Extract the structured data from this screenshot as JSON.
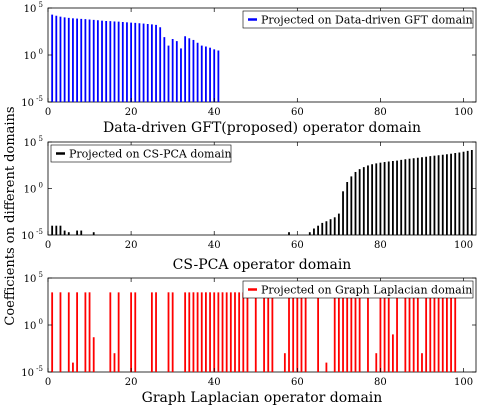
{
  "figure": {
    "ylabel": "Coefficients on different domains"
  },
  "chart_data": [
    {
      "type": "bar",
      "title": "",
      "xlabel": "Data-driven GFT(proposed) operator domain",
      "ylabel": "",
      "legend": "Projected on Data-driven GFT domain",
      "legend_position": "top-right",
      "color": "#0000ff",
      "yscale": "log",
      "xlim": [
        0,
        103
      ],
      "ylim": [
        1e-05,
        100000
      ],
      "xticks": [
        0,
        20,
        40,
        60,
        80,
        100
      ],
      "yticks": [
        1e-05,
        1,
        100000
      ],
      "ytick_labels": [
        {
          "base": "10",
          "exp": "-5"
        },
        {
          "base": "10",
          "exp": "0"
        },
        {
          "base": "10",
          "exp": "5"
        }
      ],
      "x": [
        1,
        2,
        3,
        4,
        5,
        6,
        7,
        8,
        9,
        10,
        11,
        12,
        13,
        14,
        15,
        16,
        17,
        18,
        19,
        20,
        21,
        22,
        23,
        24,
        25,
        26,
        27,
        28,
        29,
        30,
        31,
        32,
        33,
        34,
        35,
        36,
        37,
        38,
        39,
        40,
        41
      ],
      "values": [
        20000,
        15000,
        12000,
        10000,
        9000,
        8000,
        7500,
        7000,
        6500,
        6000,
        5500,
        5000,
        4500,
        4200,
        4000,
        3700,
        3500,
        3200,
        3000,
        2800,
        2600,
        2400,
        2200,
        2000,
        1800,
        1600,
        900,
        80,
        10,
        50,
        30,
        5,
        100,
        60,
        40,
        20,
        10,
        8,
        6,
        4,
        3
      ]
    },
    {
      "type": "bar",
      "title": "",
      "xlabel": "CS-PCA operator domain",
      "ylabel": "",
      "legend": "Projected on CS-PCA domain",
      "legend_position": "top-left",
      "color": "#000000",
      "yscale": "log",
      "xlim": [
        0,
        103
      ],
      "ylim": [
        1e-05,
        100000
      ],
      "xticks": [
        0,
        20,
        40,
        60,
        80,
        100
      ],
      "yticks": [
        1e-05,
        1,
        100000
      ],
      "ytick_labels": [
        {
          "base": "10",
          "exp": "-5"
        },
        {
          "base": "10",
          "exp": "0"
        },
        {
          "base": "10",
          "exp": "5"
        }
      ],
      "x": [
        1,
        2,
        3,
        4,
        5,
        7,
        8,
        11,
        58,
        63,
        64,
        65,
        66,
        67,
        68,
        69,
        70,
        71,
        72,
        73,
        74,
        75,
        76,
        77,
        78,
        79,
        80,
        81,
        82,
        83,
        84,
        85,
        86,
        87,
        88,
        89,
        90,
        91,
        92,
        93,
        94,
        95,
        96,
        97,
        98,
        99,
        100,
        101,
        102
      ],
      "values": [
        0.0001,
        0.0001,
        0.0001,
        3e-05,
        2e-05,
        3e-05,
        3e-05,
        2e-05,
        2e-05,
        2e-05,
        5e-05,
        0.0001,
        0.0002,
        0.0003,
        0.0005,
        0.0008,
        0.002,
        0.5,
        5,
        20,
        60,
        120,
        200,
        300,
        400,
        500,
        600,
        700,
        800,
        900,
        1000,
        1200,
        1400,
        1600,
        1800,
        2000,
        2300,
        2600,
        3000,
        3400,
        3800,
        4200,
        4800,
        5500,
        6500,
        7500,
        9000,
        11000,
        14000
      ]
    },
    {
      "type": "bar",
      "title": "",
      "xlabel": "Graph Laplacian operator domain",
      "ylabel": "",
      "legend": "Projected on Graph Laplacian domain",
      "legend_position": "top-right",
      "color": "#ff0000",
      "yscale": "log",
      "xlim": [
        0,
        103
      ],
      "ylim": [
        1e-05,
        100000
      ],
      "xticks": [
        0,
        20,
        40,
        60,
        80,
        100
      ],
      "yticks": [
        1e-05,
        1,
        100000
      ],
      "ytick_labels": [
        {
          "base": "10",
          "exp": "-5"
        },
        {
          "base": "10",
          "exp": "0"
        },
        {
          "base": "10",
          "exp": "5"
        }
      ],
      "x": [
        1,
        3,
        5,
        6,
        7,
        9,
        10,
        11,
        15,
        16,
        17,
        20,
        21,
        25,
        26,
        29,
        30,
        33,
        34,
        35,
        36,
        37,
        38,
        39,
        40,
        41,
        42,
        43,
        44,
        45,
        46,
        47,
        48,
        50,
        52,
        53,
        54,
        57,
        58,
        59,
        60,
        61,
        62,
        65,
        67,
        69,
        70,
        71,
        72,
        73,
        74,
        75,
        77,
        79,
        80,
        81,
        82,
        83,
        84,
        86,
        87,
        88,
        89,
        90,
        91,
        92,
        93,
        94,
        95,
        96,
        97,
        98
      ],
      "values": [
        3000,
        3000,
        3000,
        0.0001,
        3000,
        3000,
        3000,
        0.05,
        3000,
        0.001,
        3000,
        3000,
        3000,
        3000,
        3000,
        3000,
        3000,
        3000,
        3000,
        3000,
        3000,
        3000,
        3000,
        3000,
        3000,
        3000,
        3000,
        3000,
        3000,
        3000,
        3000,
        3000,
        3000,
        3000,
        3000,
        3000,
        3000,
        0.001,
        3000,
        3000,
        3000,
        3000,
        3000,
        3000,
        0.0001,
        3000,
        3000,
        3000,
        3000,
        3000,
        3000,
        3000,
        3000,
        0.001,
        3000,
        3000,
        3000,
        0.1,
        3000,
        3000,
        3000,
        3000,
        3000,
        0.001,
        3000,
        3000,
        3000,
        3000,
        3000,
        3000,
        3000,
        3000
      ]
    }
  ]
}
